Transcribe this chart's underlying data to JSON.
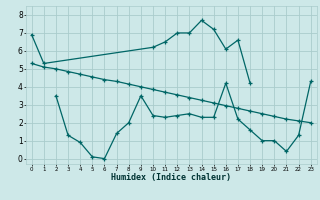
{
  "xlabel": "Humidex (Indice chaleur)",
  "background_color": "#cde8e8",
  "grid_color": "#aacccc",
  "line_color": "#006666",
  "line1_x": [
    0,
    1,
    10,
    11,
    12,
    13,
    14,
    15,
    16,
    17,
    18
  ],
  "line1_y": [
    6.9,
    5.3,
    6.2,
    6.5,
    7.0,
    7.0,
    7.7,
    7.2,
    6.1,
    6.6,
    4.2
  ],
  "line2_x": [
    0,
    1,
    2,
    3,
    4,
    5,
    6,
    7,
    8,
    9,
    10,
    11,
    12,
    13,
    14,
    15,
    16,
    17,
    18,
    19,
    20,
    21,
    22,
    23
  ],
  "line2_y": [
    5.3,
    5.1,
    5.0,
    4.85,
    4.7,
    4.55,
    4.4,
    4.3,
    4.15,
    4.0,
    3.85,
    3.7,
    3.55,
    3.4,
    3.25,
    3.1,
    2.95,
    2.8,
    2.65,
    2.5,
    2.35,
    2.2,
    2.1,
    2.0
  ],
  "line3_x": [
    2,
    3,
    4,
    5,
    6,
    7,
    8,
    9,
    10,
    11,
    12,
    13,
    14,
    15,
    16,
    17,
    18,
    19,
    20,
    21,
    22,
    23
  ],
  "line3_y": [
    3.5,
    1.3,
    0.9,
    0.1,
    0.0,
    1.4,
    2.0,
    3.5,
    2.4,
    2.3,
    2.4,
    2.5,
    2.3,
    2.3,
    4.2,
    2.2,
    1.6,
    1.0,
    1.0,
    0.4,
    1.3,
    4.3
  ],
  "xlim": [
    -0.5,
    23.5
  ],
  "ylim": [
    -0.3,
    8.5
  ],
  "xticks": [
    0,
    1,
    2,
    3,
    4,
    5,
    6,
    7,
    8,
    9,
    10,
    11,
    12,
    13,
    14,
    15,
    16,
    17,
    18,
    19,
    20,
    21,
    22,
    23
  ],
  "yticks": [
    0,
    1,
    2,
    3,
    4,
    5,
    6,
    7,
    8
  ],
  "marker": "+"
}
